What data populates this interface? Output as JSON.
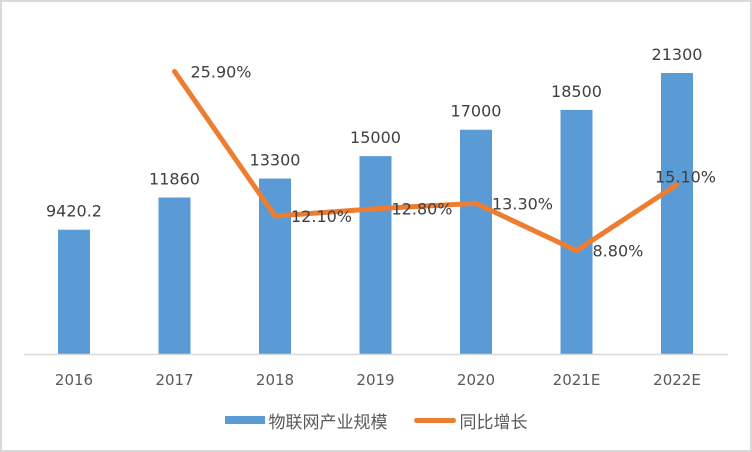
{
  "chart_data": {
    "type": "bar+line",
    "title": "",
    "categories": [
      "2016",
      "2017",
      "2018",
      "2019",
      "2020",
      "2021E",
      "2022E"
    ],
    "series": [
      {
        "name": "物联网产业规模",
        "type": "bar",
        "color": "#5b9bd5",
        "values": [
          9420.2,
          11860,
          13300,
          15000,
          17000,
          18500,
          21300
        ],
        "labels": [
          "9420.2",
          "11860",
          "13300",
          "15000",
          "17000",
          "18500",
          "21300"
        ]
      },
      {
        "name": "同比增长",
        "type": "line",
        "color": "#ed7d31",
        "axis": "secondary",
        "values": [
          null,
          25.9,
          12.1,
          12.8,
          13.3,
          8.8,
          15.1
        ],
        "labels": [
          "",
          "25.90%",
          "12.10%",
          "12.80%",
          "13.30%",
          "8.80%",
          "15.10%"
        ]
      }
    ],
    "xlabel": "",
    "ylabel": "",
    "grid": false,
    "legend_position": "bottom",
    "axes_visible": {
      "y_primary": false,
      "y_secondary": false
    }
  },
  "legend": {
    "bar_label": "物联网产业规模",
    "line_label": "同比增长"
  }
}
